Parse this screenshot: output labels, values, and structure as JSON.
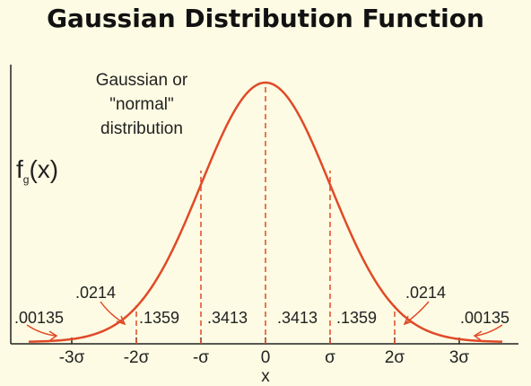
{
  "title": "Gaussian Distribution Function",
  "y_label": {
    "main": "f",
    "subscript": "g",
    "arg": "(x)"
  },
  "curve_label": [
    "Gaussian or",
    "\"normal\"",
    "distribution"
  ],
  "x_axis_label": "x",
  "ticks": [
    "-3σ",
    "-2σ",
    "-σ",
    "0",
    "σ",
    "2σ",
    "3σ"
  ],
  "areas": {
    "tail_left": ".00135",
    "band_left_2": ".0214",
    "band_left_1": ".1359",
    "center_left": ".3413",
    "center_right": ".3413",
    "band_right_1": ".1359",
    "band_right_2": ".0214",
    "tail_right": ".00135"
  },
  "colors": {
    "curve": "#e04a28",
    "background": "#fdfbe3",
    "axis": "#222222"
  }
}
